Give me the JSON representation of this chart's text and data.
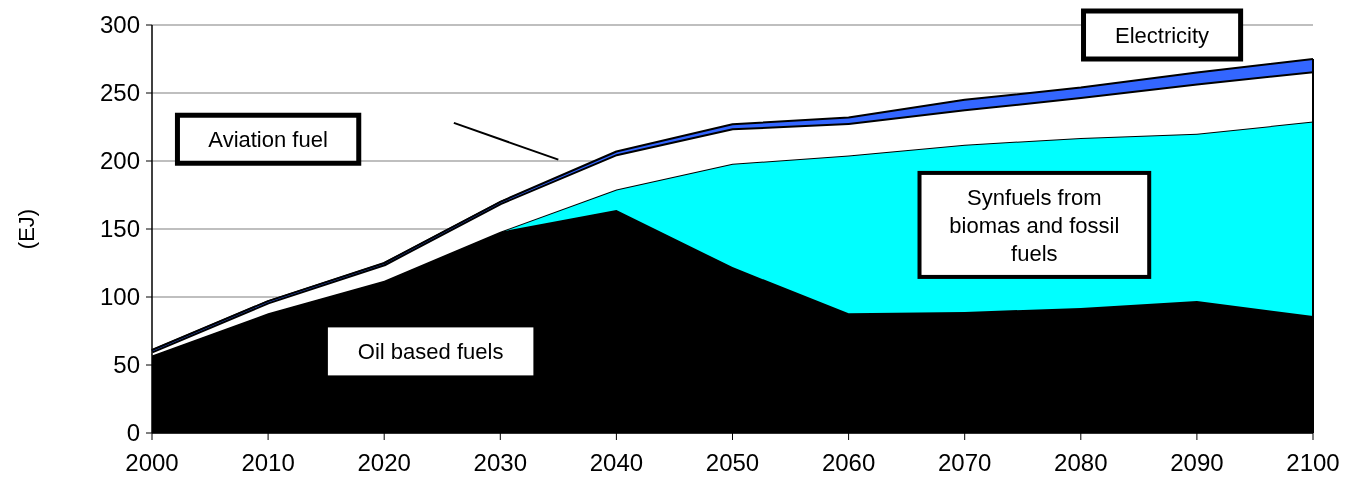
{
  "chart_data": {
    "type": "area",
    "stacked": true,
    "ylabel": "(EJ)",
    "x": [
      2000,
      2010,
      2020,
      2030,
      2040,
      2050,
      2060,
      2070,
      2080,
      2090,
      2100
    ],
    "xlim": [
      2000,
      2100
    ],
    "xticks": [
      2000,
      2010,
      2020,
      2030,
      2040,
      2050,
      2060,
      2070,
      2080,
      2090,
      2100
    ],
    "ylim": [
      0,
      300
    ],
    "yticks": [
      0,
      50,
      100,
      150,
      200,
      250,
      300
    ],
    "grid": "y",
    "series": [
      {
        "name": "Oil based fuels",
        "color": "#000000",
        "values": [
          57,
          88,
          112,
          148,
          164,
          122,
          88,
          89,
          92,
          97,
          86
        ]
      },
      {
        "name": "Synfuels from biomas and fossil fuels",
        "color": "#00ffff",
        "values": [
          0,
          0,
          0,
          0,
          15,
          76,
          116,
          123,
          125,
          123,
          143
        ]
      },
      {
        "name": "Aviation fuel",
        "color": "#ffffff",
        "values": [
          3,
          8,
          12,
          21,
          26,
          26,
          24,
          26,
          30,
          37,
          37
        ]
      },
      {
        "name": "Electricity",
        "color": "#3366ff",
        "values": [
          1,
          1,
          1,
          1,
          2,
          3,
          4,
          7,
          7,
          8,
          9
        ]
      }
    ]
  }
}
